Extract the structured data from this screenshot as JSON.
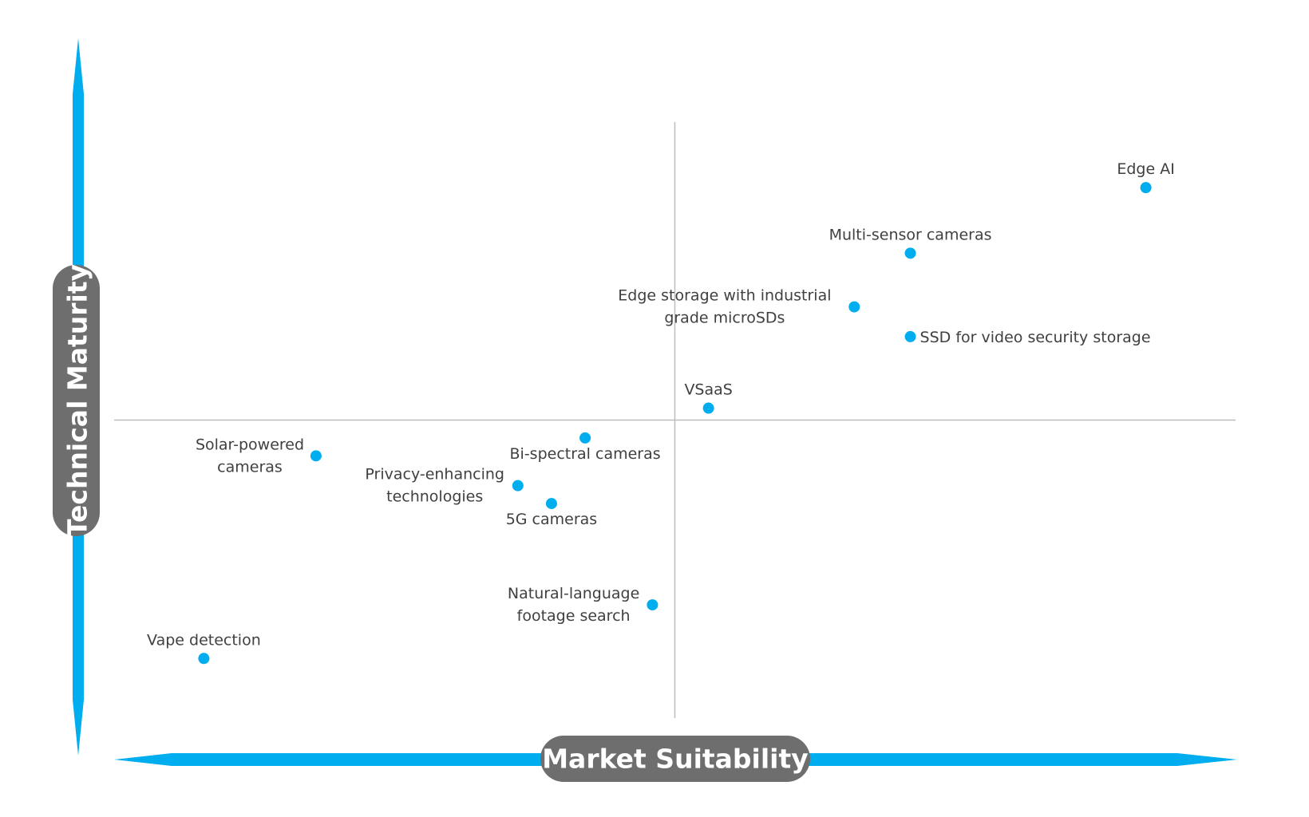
{
  "chart_data": {
    "type": "scatter",
    "xlabel": "Market Suitability",
    "ylabel": "Technical Maturity",
    "xlim": [
      0,
      10
    ],
    "ylim": [
      0,
      10
    ],
    "quadrant_divider": {
      "x": 5,
      "y": 5
    },
    "grid": false,
    "colors": {
      "axis": "#00adef",
      "point": "#00adef",
      "pill": "#6e6e6e",
      "divider": "#bdbdbd",
      "label": "#404040"
    },
    "points": [
      {
        "label": "Edge AI",
        "x": 9.2,
        "y": 8.9,
        "label_pos": "above"
      },
      {
        "label": "Multi-sensor cameras",
        "x": 7.1,
        "y": 7.8,
        "label_pos": "above"
      },
      {
        "label": "Edge storage with industrial grade microSDs",
        "lines": [
          "Edge storage with industrial",
          "grade microSDs"
        ],
        "x": 6.6,
        "y": 6.9,
        "label_pos": "left"
      },
      {
        "label": "SSD for video security storage",
        "x": 7.1,
        "y": 6.4,
        "label_pos": "right"
      },
      {
        "label": "VSaaS",
        "x": 5.3,
        "y": 5.2,
        "label_pos": "above"
      },
      {
        "label": "Bi-spectral cameras",
        "x": 4.2,
        "y": 4.7,
        "label_pos": "below"
      },
      {
        "label": "Solar-powered cameras",
        "lines": [
          "Solar-powered",
          "cameras"
        ],
        "x": 1.8,
        "y": 4.4,
        "label_pos": "left"
      },
      {
        "label": "Privacy-enhancing technologies",
        "lines": [
          "Privacy-enhancing",
          "technologies"
        ],
        "x": 3.6,
        "y": 3.9,
        "label_pos": "left"
      },
      {
        "label": "5G cameras",
        "x": 3.9,
        "y": 3.6,
        "label_pos": "below"
      },
      {
        "label": "Natural-language footage search",
        "lines": [
          "Natural-language",
          "footage search"
        ],
        "x": 4.8,
        "y": 1.9,
        "label_pos": "left"
      },
      {
        "label": "Vape detection",
        "x": 0.8,
        "y": 1.0,
        "label_pos": "above"
      }
    ]
  }
}
